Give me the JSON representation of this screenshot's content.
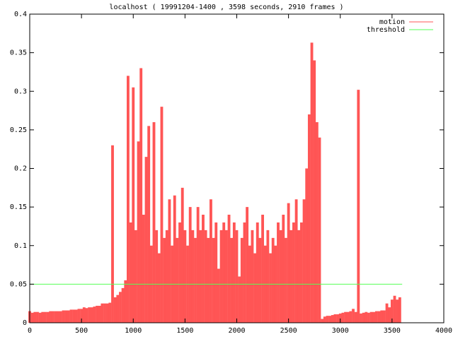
{
  "chart_data": {
    "type": "impulses",
    "title": "localhost ( 19991204-1400 , 3598 seconds, 2910 frames )",
    "xlim": [
      0,
      4000
    ],
    "xticks": [
      0,
      500,
      1000,
      1500,
      2000,
      2500,
      3000,
      3500,
      4000
    ],
    "ylim": [
      0,
      0.4
    ],
    "yticks": [
      0,
      0.05,
      0.1,
      0.15,
      0.2,
      0.25,
      0.3,
      0.35,
      0.4
    ],
    "legend": "top-right",
    "series": [
      {
        "name": "motion",
        "color": "#ff5555",
        "style": "impulses",
        "x": [
          0,
          25,
          50,
          75,
          100,
          125,
          150,
          175,
          200,
          225,
          250,
          275,
          300,
          325,
          350,
          375,
          400,
          425,
          450,
          475,
          500,
          525,
          550,
          575,
          600,
          625,
          650,
          675,
          700,
          725,
          750,
          775,
          800,
          825,
          850,
          875,
          900,
          925,
          950,
          975,
          1000,
          1025,
          1050,
          1075,
          1100,
          1125,
          1150,
          1175,
          1200,
          1225,
          1250,
          1275,
          1300,
          1325,
          1350,
          1375,
          1400,
          1425,
          1450,
          1475,
          1500,
          1525,
          1550,
          1575,
          1600,
          1625,
          1650,
          1675,
          1700,
          1725,
          1750,
          1775,
          1800,
          1825,
          1850,
          1875,
          1900,
          1925,
          1950,
          1975,
          2000,
          2025,
          2050,
          2075,
          2100,
          2125,
          2150,
          2175,
          2200,
          2225,
          2250,
          2275,
          2300,
          2325,
          2350,
          2375,
          2400,
          2425,
          2450,
          2475,
          2500,
          2525,
          2550,
          2575,
          2600,
          2625,
          2650,
          2675,
          2700,
          2725,
          2750,
          2775,
          2800,
          2825,
          2850,
          2875,
          2900,
          2925,
          2950,
          2975,
          3000,
          3025,
          3050,
          3075,
          3100,
          3125,
          3150,
          3175,
          3200,
          3225,
          3250,
          3275,
          3300,
          3325,
          3350,
          3375,
          3400,
          3425,
          3450,
          3475,
          3500,
          3525,
          3550,
          3575
        ],
        "values": [
          0.015,
          0.013,
          0.014,
          0.014,
          0.013,
          0.014,
          0.014,
          0.014,
          0.015,
          0.015,
          0.015,
          0.015,
          0.015,
          0.016,
          0.016,
          0.016,
          0.017,
          0.017,
          0.017,
          0.018,
          0.018,
          0.02,
          0.019,
          0.02,
          0.02,
          0.021,
          0.022,
          0.022,
          0.025,
          0.025,
          0.025,
          0.026,
          0.23,
          0.033,
          0.036,
          0.04,
          0.045,
          0.055,
          0.32,
          0.13,
          0.305,
          0.12,
          0.235,
          0.33,
          0.14,
          0.215,
          0.255,
          0.1,
          0.26,
          0.12,
          0.09,
          0.28,
          0.11,
          0.12,
          0.16,
          0.1,
          0.165,
          0.11,
          0.13,
          0.175,
          0.12,
          0.1,
          0.15,
          0.12,
          0.11,
          0.15,
          0.12,
          0.14,
          0.12,
          0.11,
          0.16,
          0.11,
          0.13,
          0.07,
          0.12,
          0.13,
          0.12,
          0.14,
          0.11,
          0.13,
          0.12,
          0.06,
          0.11,
          0.13,
          0.15,
          0.1,
          0.12,
          0.09,
          0.13,
          0.11,
          0.14,
          0.1,
          0.12,
          0.09,
          0.11,
          0.1,
          0.13,
          0.12,
          0.14,
          0.11,
          0.155,
          0.12,
          0.13,
          0.16,
          0.12,
          0.13,
          0.16,
          0.2,
          0.27,
          0.363,
          0.34,
          0.26,
          0.24,
          0.005,
          0.008,
          0.009,
          0.009,
          0.01,
          0.011,
          0.011,
          0.012,
          0.013,
          0.014,
          0.014,
          0.015,
          0.018,
          0.014,
          0.302,
          0.012,
          0.013,
          0.014,
          0.013,
          0.014,
          0.014,
          0.015,
          0.015,
          0.016,
          0.016,
          0.025,
          0.02,
          0.03,
          0.035,
          0.03,
          0.033
        ]
      },
      {
        "name": "threshold",
        "color": "#55ff55",
        "style": "lines",
        "x": [
          0,
          3598
        ],
        "values": [
          0.05,
          0.05
        ]
      }
    ]
  }
}
